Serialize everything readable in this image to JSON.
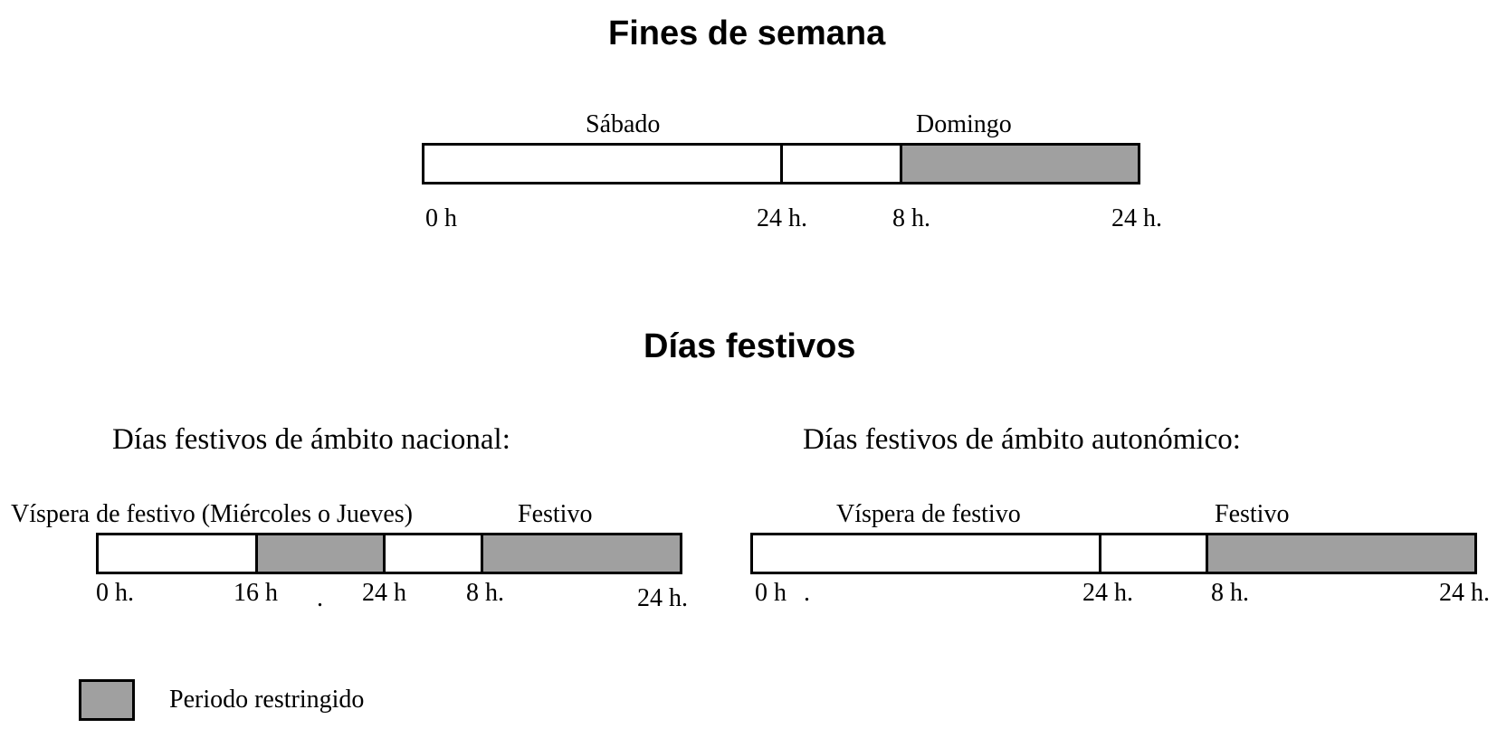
{
  "weekend": {
    "title": "Fines de semana",
    "day1": "Sábado",
    "day2": "Domingo",
    "ticks": [
      "0 h",
      "24 h.",
      "8 h.",
      "24 h."
    ]
  },
  "holidays": {
    "title": "Días festivos",
    "national": {
      "heading": "Días festivos de ámbito nacional:",
      "eve_label": "Víspera de festivo (Miércoles o Jueves)",
      "holiday_label": "Festivo",
      "ticks": [
        "0 h.",
        "16 h",
        ".",
        "24 h",
        "8 h.",
        "24 h."
      ]
    },
    "regional": {
      "heading": "Días festivos de ámbito autonómico:",
      "eve_label": "Víspera de festivo",
      "holiday_label": "Festivo",
      "ticks": [
        "0 h",
        ".",
        "24 h.",
        "8 h.",
        "24 h."
      ]
    }
  },
  "legend": {
    "label": "Periodo restringido",
    "swatch_color": "#a0a0a0"
  },
  "colors": {
    "restricted": "#a0a0a0",
    "free": "#ffffff",
    "border": "#000000"
  }
}
